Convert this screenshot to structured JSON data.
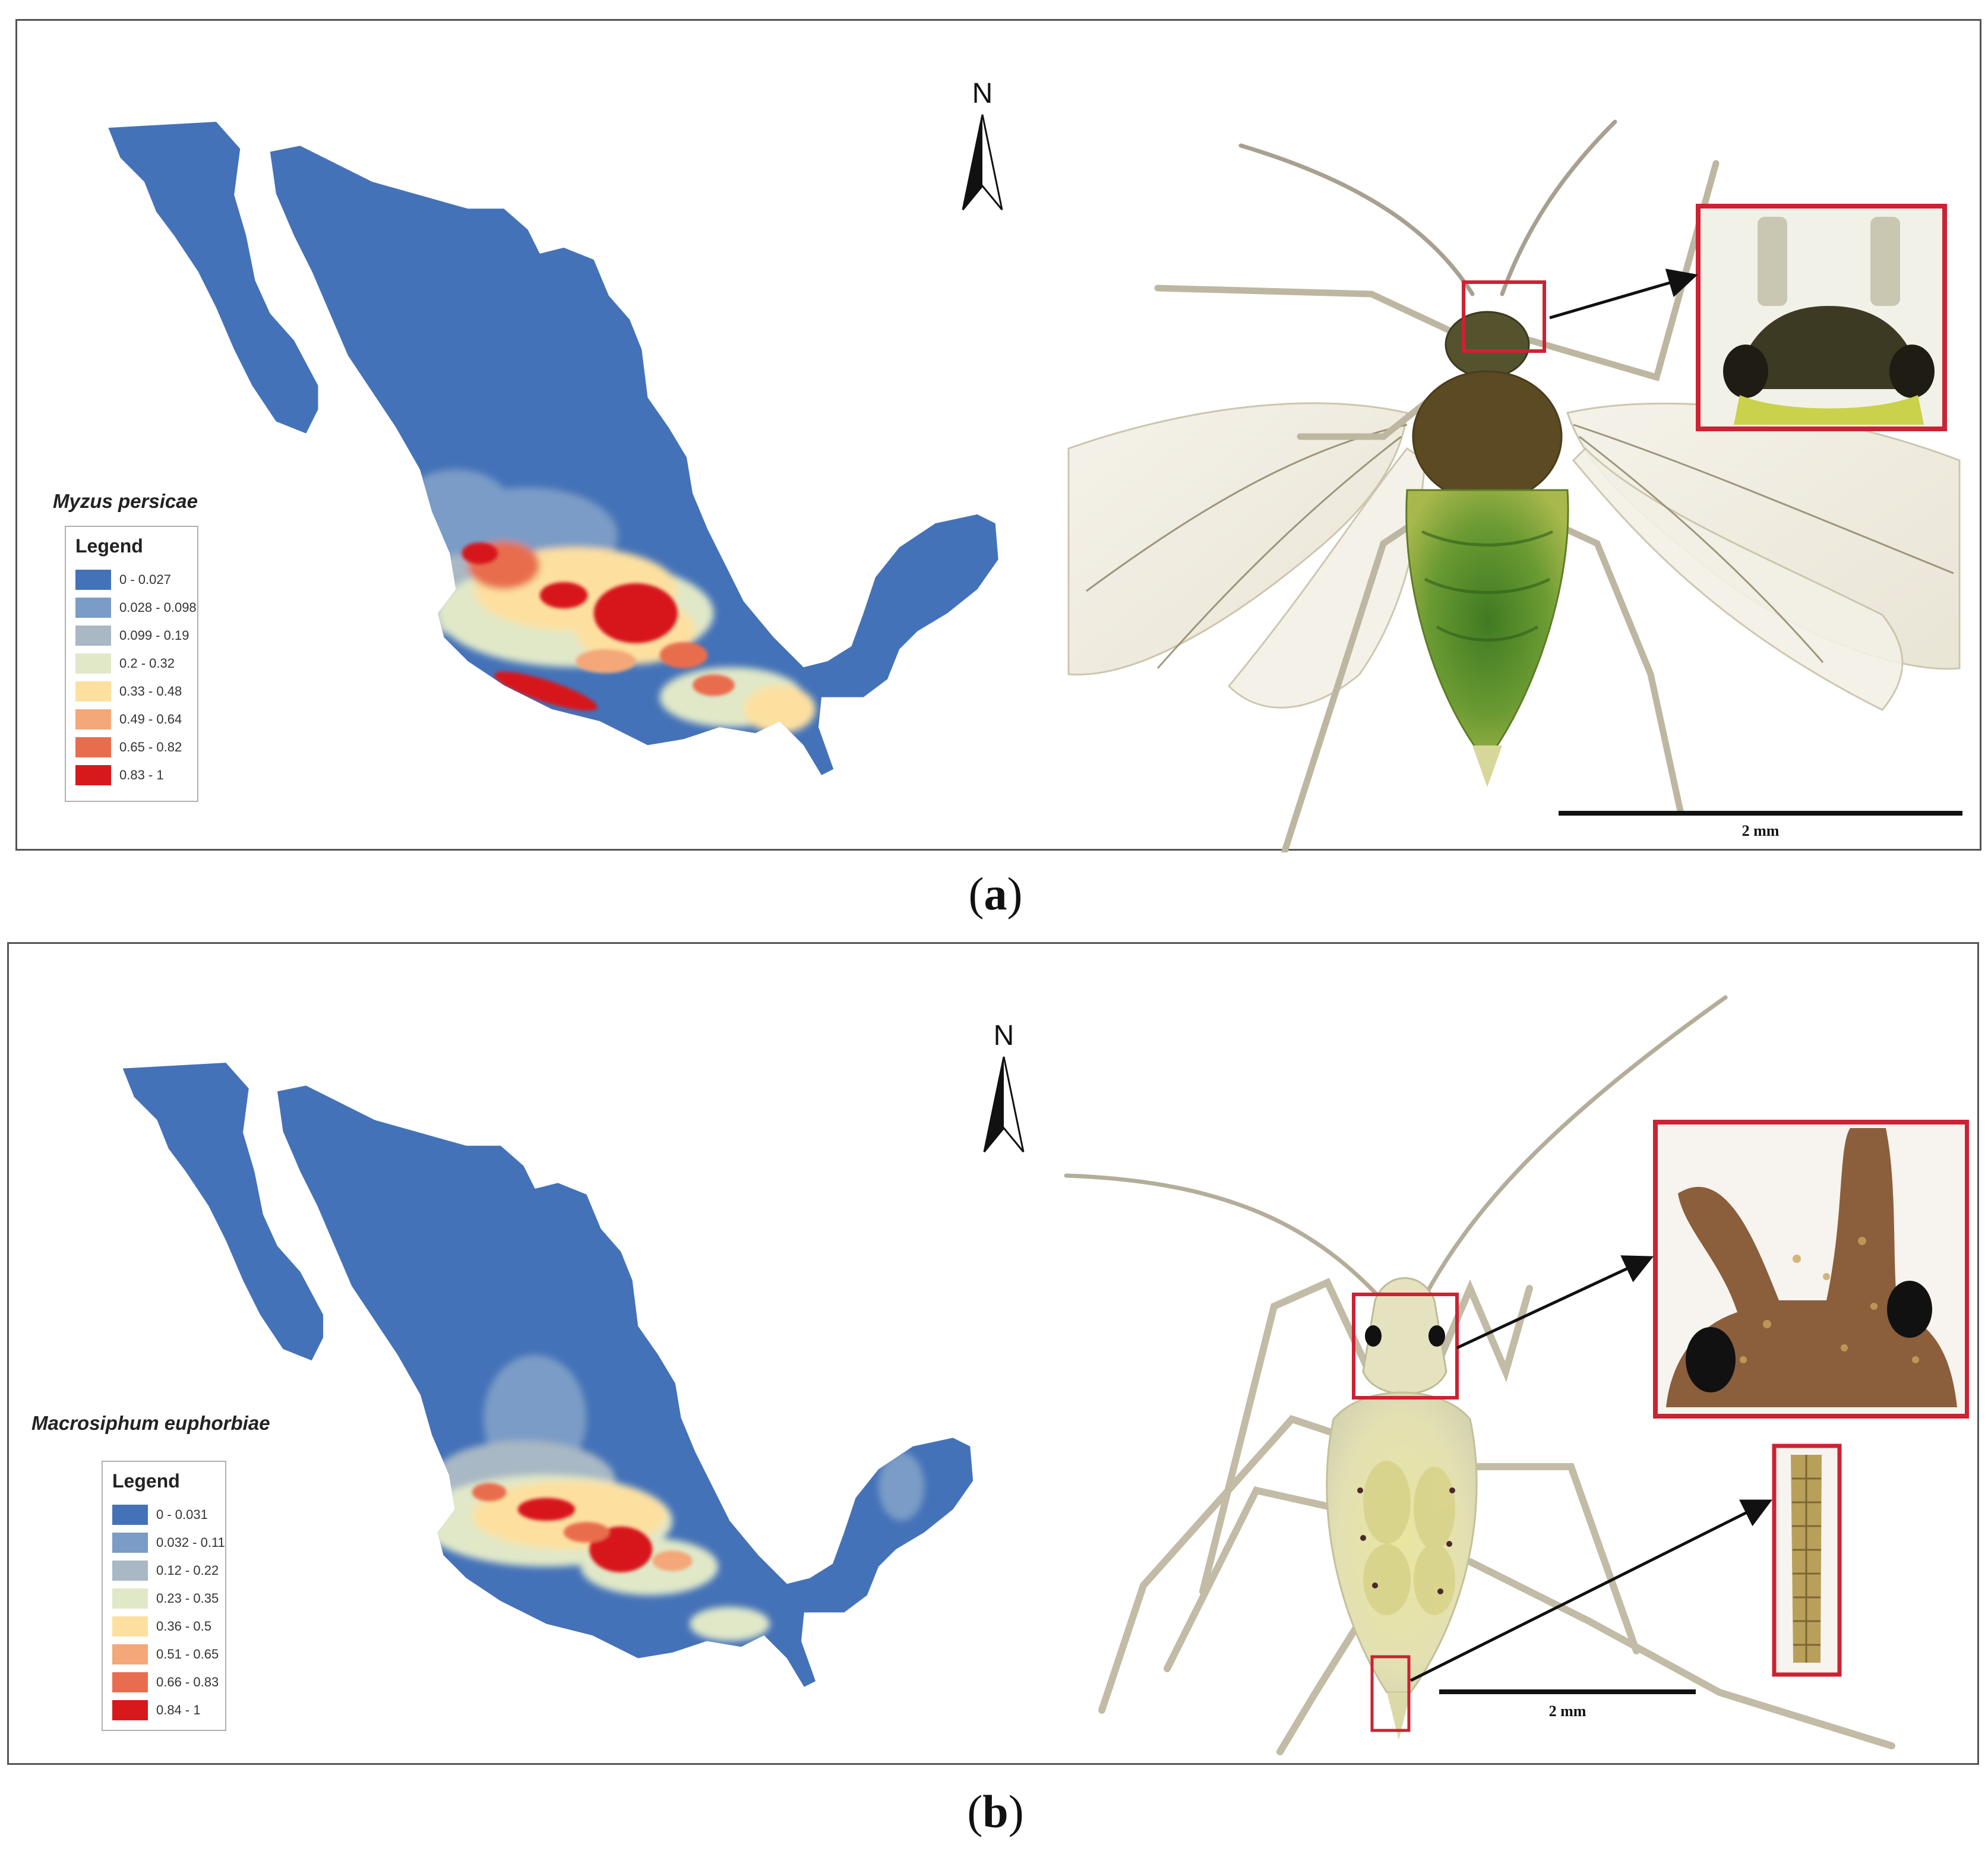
{
  "figure": {
    "panels": [
      {
        "label_letter": "a",
        "species": "Myzus persicae",
        "legend_title": "Legend",
        "legend_entries": [
          {
            "label": "0 - 0.027",
            "color": "#4472b8"
          },
          {
            "label": "0.028 - 0.098",
            "color": "#7a9cc6"
          },
          {
            "label": "0.099 - 0.19",
            "color": "#a8b8c4"
          },
          {
            "label": "0.2 - 0.32",
            "color": "#e0e8c8"
          },
          {
            "label": "0.33 - 0.48",
            "color": "#fde0a0"
          },
          {
            "label": "0.49 - 0.64",
            "color": "#f4a778"
          },
          {
            "label": "0.65 - 0.82",
            "color": "#e86d4e"
          },
          {
            "label": "0.83 - 1",
            "color": "#d7191c"
          }
        ],
        "north_label": "N",
        "scale_label": "2 mm"
      },
      {
        "label_letter": "b",
        "species": "Macrosiphum euphorbiae",
        "legend_title": "Legend",
        "legend_entries": [
          {
            "label": "0 - 0.031",
            "color": "#4472b8"
          },
          {
            "label": "0.032 - 0.11",
            "color": "#7a9cc6"
          },
          {
            "label": "0.12 - 0.22",
            "color": "#a8b8c4"
          },
          {
            "label": "0.23 - 0.35",
            "color": "#e0e8c8"
          },
          {
            "label": "0.36 - 0.5",
            "color": "#fde0a0"
          },
          {
            "label": "0.51 - 0.65",
            "color": "#f4a778"
          },
          {
            "label": "0.66 - 0.83",
            "color": "#e86d4e"
          },
          {
            "label": "0.84 - 1",
            "color": "#d7191c"
          }
        ],
        "north_label": "N",
        "scale_label": "2 mm"
      }
    ]
  }
}
